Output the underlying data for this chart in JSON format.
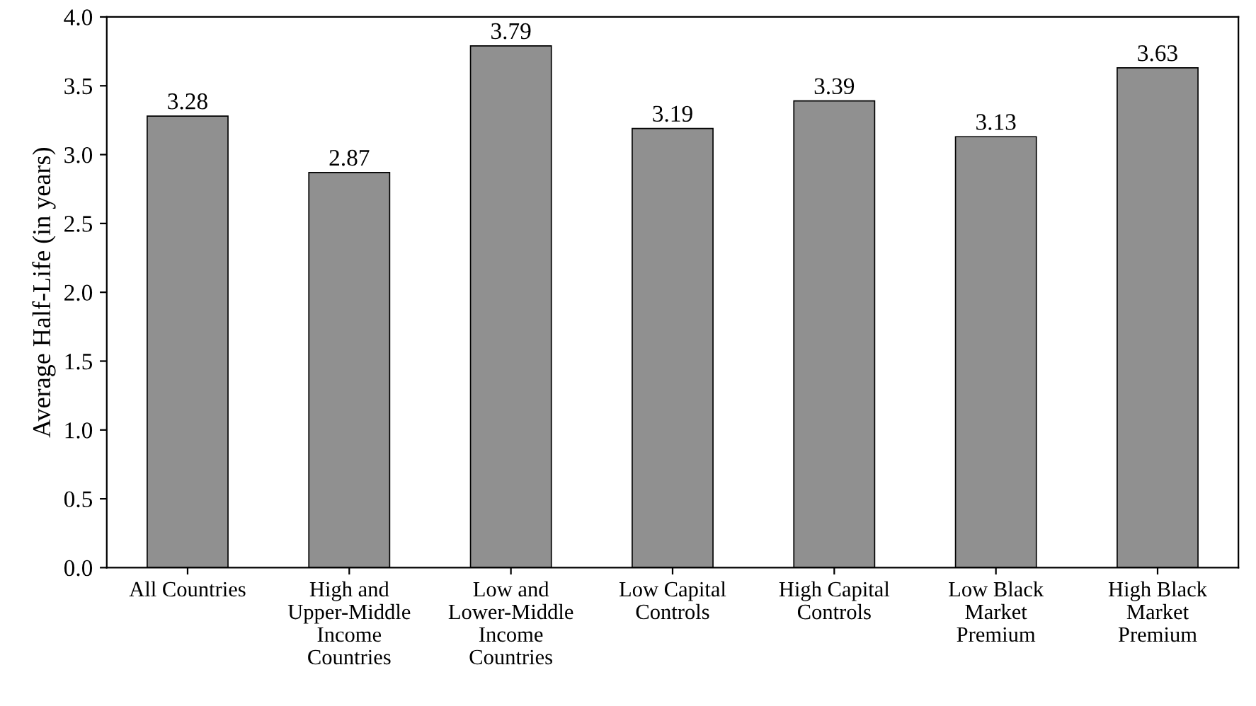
{
  "chart_data": {
    "type": "bar",
    "ylabel": "Average Half-Life (in years)",
    "categories": [
      "All Countries",
      "High and\nUpper-Middle\nIncome\nCountries",
      "Low and\nLower-Middle\nIncome\nCountries",
      "Low Capital\nControls",
      "High Capital\nControls",
      "Low Black\nMarket\nPremium",
      "High Black\nMarket\nPremium"
    ],
    "values": [
      3.28,
      2.87,
      3.79,
      3.19,
      3.39,
      3.13,
      3.63
    ],
    "color": "#909090",
    "data_labels": true,
    "ylim": [
      0,
      4.0
    ],
    "yticks": [
      {
        "value": 0,
        "label": "0.0"
      },
      {
        "value": 0.5,
        "label": "0.5"
      },
      {
        "value": 1.0,
        "label": "1.0"
      },
      {
        "value": 1.5,
        "label": "1.5"
      },
      {
        "value": 2.0,
        "label": "2.0"
      },
      {
        "value": 2.5,
        "label": "2.5"
      },
      {
        "value": 3.0,
        "label": "3.0"
      },
      {
        "value": 3.5,
        "label": "3.5"
      },
      {
        "value": 4.0,
        "label": "4.0"
      }
    ],
    "grid": false,
    "legend": false
  }
}
